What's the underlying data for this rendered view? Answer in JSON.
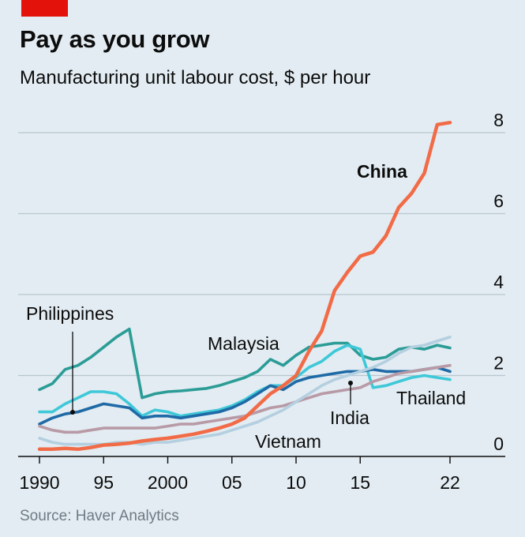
{
  "header": {
    "title": "Pay as you grow",
    "subtitle": "Manufacturing unit labour cost, $ per hour"
  },
  "footer": {
    "source": "Source: Haver Analytics"
  },
  "chart_data": {
    "type": "line",
    "title": "Pay as you grow",
    "subtitle": "Manufacturing unit labour cost, $ per hour",
    "ylim": [
      0,
      8
    ],
    "xlim": [
      1990,
      2022
    ],
    "y_ticks": [
      0,
      2,
      4,
      6,
      8
    ],
    "x_ticks": [
      1990,
      1995,
      2000,
      2005,
      2010,
      2015,
      2022
    ],
    "x_tick_labels": [
      "1990",
      "95",
      "2000",
      "05",
      "10",
      "15",
      "22"
    ],
    "grid": true,
    "y_axis_side": "right",
    "series": [
      {
        "name": "Malaysia",
        "color": "#2b9c96",
        "x": [
          1990,
          1991,
          1992,
          1993,
          1994,
          1995,
          1996,
          1997,
          1998,
          1999,
          2000,
          2001,
          2002,
          2003,
          2004,
          2005,
          2006,
          2007,
          2008,
          2009,
          2010,
          2011,
          2012,
          2013,
          2014,
          2015,
          2016,
          2017,
          2018,
          2019,
          2020,
          2021,
          2022
        ],
        "values": [
          1.65,
          1.8,
          2.15,
          2.25,
          2.45,
          2.7,
          2.95,
          3.15,
          1.45,
          1.55,
          1.6,
          1.62,
          1.65,
          1.68,
          1.75,
          1.85,
          1.95,
          2.1,
          2.4,
          2.25,
          2.5,
          2.7,
          2.75,
          2.8,
          2.8,
          2.5,
          2.4,
          2.45,
          2.65,
          2.7,
          2.65,
          2.75,
          2.68
        ]
      },
      {
        "name": "Thailand",
        "color": "#3ec8d8",
        "x": [
          1990,
          1991,
          1992,
          1993,
          1994,
          1995,
          1996,
          1997,
          1998,
          1999,
          2000,
          2001,
          2002,
          2003,
          2004,
          2005,
          2006,
          2007,
          2008,
          2009,
          2010,
          2011,
          2012,
          2013,
          2014,
          2015,
          2016,
          2017,
          2018,
          2019,
          2020,
          2021,
          2022
        ],
        "values": [
          1.1,
          1.1,
          1.3,
          1.45,
          1.6,
          1.6,
          1.55,
          1.3,
          1.0,
          1.15,
          1.1,
          1.0,
          1.05,
          1.1,
          1.15,
          1.25,
          1.4,
          1.6,
          1.75,
          1.75,
          1.95,
          2.2,
          2.35,
          2.6,
          2.75,
          2.65,
          1.7,
          1.75,
          1.85,
          1.95,
          2.0,
          1.95,
          1.9
        ]
      },
      {
        "name": "Philippines",
        "color": "#1f6aa6",
        "x": [
          1990,
          1991,
          1992,
          1993,
          1994,
          1995,
          1996,
          1997,
          1998,
          1999,
          2000,
          2001,
          2002,
          2003,
          2004,
          2005,
          2006,
          2007,
          2008,
          2009,
          2010,
          2011,
          2012,
          2013,
          2014,
          2015,
          2016,
          2017,
          2018,
          2019,
          2020,
          2021,
          2022
        ],
        "values": [
          0.8,
          0.95,
          1.05,
          1.1,
          1.2,
          1.3,
          1.25,
          1.2,
          0.95,
          1.0,
          1.0,
          0.95,
          1.0,
          1.05,
          1.1,
          1.2,
          1.35,
          1.55,
          1.75,
          1.65,
          1.85,
          1.95,
          2.0,
          2.05,
          2.1,
          2.1,
          2.15,
          2.1,
          2.1,
          2.1,
          2.15,
          2.2,
          2.1
        ]
      },
      {
        "name": "India",
        "color": "#b89aa6",
        "x": [
          1990,
          1991,
          1992,
          1993,
          1994,
          1995,
          1996,
          1997,
          1998,
          1999,
          2000,
          2001,
          2002,
          2003,
          2004,
          2005,
          2006,
          2007,
          2008,
          2009,
          2010,
          2011,
          2012,
          2013,
          2014,
          2015,
          2016,
          2017,
          2018,
          2019,
          2020,
          2021,
          2022
        ],
        "values": [
          0.75,
          0.65,
          0.6,
          0.6,
          0.65,
          0.7,
          0.7,
          0.7,
          0.7,
          0.7,
          0.75,
          0.8,
          0.8,
          0.85,
          0.9,
          0.95,
          1.0,
          1.1,
          1.2,
          1.25,
          1.35,
          1.45,
          1.55,
          1.6,
          1.65,
          1.7,
          1.85,
          1.95,
          2.05,
          2.1,
          2.15,
          2.2,
          2.25
        ]
      },
      {
        "name": "Vietnam",
        "color": "#b4cfe0",
        "x": [
          1990,
          1991,
          1992,
          1993,
          1994,
          1995,
          1996,
          1997,
          1998,
          1999,
          2000,
          2001,
          2002,
          2003,
          2004,
          2005,
          2006,
          2007,
          2008,
          2009,
          2010,
          2011,
          2012,
          2013,
          2014,
          2015,
          2016,
          2017,
          2018,
          2019,
          2020,
          2021,
          2022
        ],
        "values": [
          0.45,
          0.35,
          0.3,
          0.3,
          0.3,
          0.3,
          0.35,
          0.35,
          0.3,
          0.35,
          0.35,
          0.4,
          0.45,
          0.5,
          0.55,
          0.65,
          0.75,
          0.85,
          1.0,
          1.15,
          1.35,
          1.55,
          1.75,
          1.9,
          2.0,
          2.1,
          2.2,
          2.35,
          2.55,
          2.7,
          2.75,
          2.85,
          2.95
        ]
      },
      {
        "name": "China",
        "color": "#f26b47",
        "x": [
          1990,
          1991,
          1992,
          1993,
          1994,
          1995,
          1996,
          1997,
          1998,
          1999,
          2000,
          2001,
          2002,
          2003,
          2004,
          2005,
          2006,
          2007,
          2008,
          2009,
          2010,
          2011,
          2012,
          2013,
          2014,
          2015,
          2016,
          2017,
          2018,
          2019,
          2020,
          2021,
          2022
        ],
        "values": [
          0.18,
          0.18,
          0.2,
          0.18,
          0.22,
          0.28,
          0.3,
          0.33,
          0.38,
          0.42,
          0.45,
          0.5,
          0.55,
          0.62,
          0.7,
          0.8,
          0.95,
          1.25,
          1.55,
          1.75,
          2.0,
          2.6,
          3.1,
          4.1,
          4.55,
          4.95,
          5.05,
          5.45,
          6.15,
          6.5,
          7.0,
          8.2,
          8.25
        ]
      }
    ],
    "annotations": [
      {
        "text": "China",
        "series": "China",
        "bold": true
      },
      {
        "text": "Malaysia",
        "series": "Malaysia",
        "bold": false
      },
      {
        "text": "Philippines",
        "series": "Philippines",
        "bold": false
      },
      {
        "text": "Thailand",
        "series": "Thailand",
        "bold": false
      },
      {
        "text": "India",
        "series": "India",
        "bold": false
      },
      {
        "text": "Vietnam",
        "series": "Vietnam",
        "bold": false
      }
    ]
  }
}
